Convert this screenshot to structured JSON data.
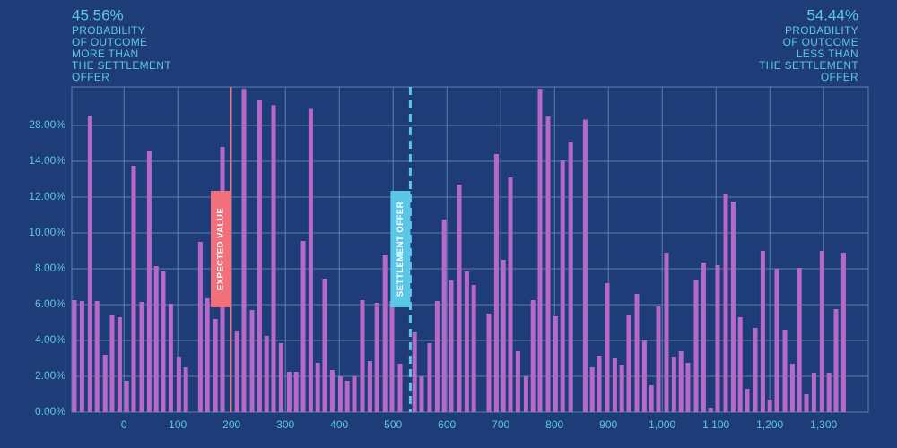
{
  "chart_data": {
    "type": "bar",
    "color": "#b768c9",
    "grid": true,
    "left_note": {
      "value": "45.56%",
      "lines": [
        "PROBABILITY",
        "OF OUTCOME",
        "MORE THAN",
        "THE SETTLEMENT",
        "OFFER"
      ]
    },
    "right_note": {
      "value": "54.44%",
      "lines": [
        "PROBABILITY",
        "OF OUTCOME",
        "LESS THAN",
        "THE SETTLEMENT",
        "OFFER"
      ]
    },
    "markers": [
      {
        "label": "EXPECTED VALUE",
        "x": 198,
        "color": "#f2707c",
        "dashed": false
      },
      {
        "label": "SETTLEMENT OFFER",
        "x": 532,
        "color": "#5cc6e6",
        "dashed": true
      }
    ],
    "xlim": [
      -97,
      1383
    ],
    "xticks": [
      0,
      100,
      200,
      300,
      400,
      500,
      600,
      700,
      800,
      900,
      {
        "value": 1000,
        "label": "1,000"
      },
      {
        "value": 1100,
        "label": "1,100"
      },
      {
        "value": 1200,
        "label": "1,200"
      },
      {
        "value": 1300,
        "label": "1,300"
      }
    ],
    "ylim": [
      0,
      42
    ],
    "yticks": [
      {
        "value": 0,
        "label": "0.00%"
      },
      {
        "value": 2,
        "label": "2.00%"
      },
      {
        "value": 4,
        "label": "4.00%"
      },
      {
        "value": 6,
        "label": "6.00%"
      },
      {
        "value": 8,
        "label": "8.00%"
      },
      {
        "value": 10,
        "label": "10.00%"
      },
      {
        "value": 12,
        "label": "12.00%"
      },
      {
        "value": 14,
        "label": "14.00%"
      },
      {
        "value": 28,
        "label": "28.00%"
      }
    ],
    "x": [
      -92,
      -78,
      -63,
      -50,
      -35,
      -22,
      -8,
      5,
      18,
      33,
      47,
      60,
      73,
      87,
      102,
      115,
      142,
      155,
      170,
      183,
      210,
      223,
      238,
      252,
      265,
      278,
      292,
      307,
      320,
      333,
      347,
      360,
      373,
      387,
      402,
      415,
      428,
      443,
      457,
      470,
      485,
      498,
      513,
      540,
      553,
      568,
      582,
      595,
      608,
      623,
      637,
      650,
      678,
      692,
      705,
      718,
      732,
      747,
      760,
      773,
      788,
      802,
      815,
      830,
      857,
      870,
      883,
      898,
      912,
      925,
      938,
      953,
      967,
      980,
      993,
      1008,
      1022,
      1035,
      1048,
      1063,
      1077,
      1090,
      1103,
      1118,
      1132,
      1145,
      1158,
      1173,
      1187,
      1200,
      1213,
      1228,
      1242,
      1255,
      1268,
      1282,
      1297,
      1310,
      1323,
      1337
    ],
    "values": [
      6.25,
      6.2,
      31.5,
      6.2,
      3.2,
      5.4,
      5.3,
      1.75,
      13.75,
      6.15,
      18.2,
      8.15,
      7.85,
      6.05,
      3.1,
      2.5,
      9.5,
      6.35,
      5.2,
      19.6,
      4.55,
      41.3,
      5.7,
      37.1,
      4.25,
      35.4,
      3.85,
      2.25,
      2.25,
      9.55,
      34,
      2.75,
      7.45,
      2.35,
      2,
      1.75,
      2,
      6.25,
      2.85,
      6.1,
      8.75,
      6.2,
      2.7,
      4.5,
      2,
      3.85,
      6.2,
      10.75,
      7.35,
      12.7,
      7.85,
      7.1,
      5.5,
      16.8,
      8.5,
      13.1,
      3.4,
      2,
      6.25,
      41.3,
      31.2,
      5.35,
      14.35,
      21.4,
      30.1,
      2.5,
      3.15,
      7.2,
      3,
      2.65,
      5.4,
      6.6,
      4,
      1.5,
      5.9,
      8.9,
      3.1,
      3.4,
      2.75,
      7.4,
      8.35,
      0.25,
      8.2,
      12.2,
      11.75,
      5.3,
      1.3,
      4.7,
      9,
      0.7,
      8,
      4.6,
      2.7,
      8.05,
      1,
      2.2,
      9,
      2.2,
      5.75,
      8.9
    ]
  }
}
